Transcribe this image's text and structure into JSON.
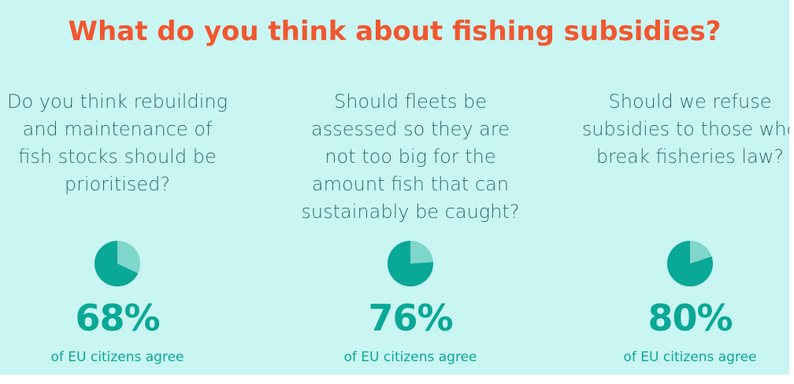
{
  "title": "What do you think about fishing subsidies?",
  "colors": {
    "background": "#c9f5f2",
    "title": "#f1572f",
    "question_text": "#2e6e6e",
    "accent": "#0aa896",
    "pie_agree": "#0aa896",
    "pie_rest": "#7fd6cb"
  },
  "chart_data": {
    "type": "pie",
    "title": "What do you think about fishing subsidies?",
    "unit": "%",
    "charts": [
      {
        "question": "Do you think rebuilding and maintenance of fish stocks should be prioritised?",
        "value": 68,
        "percent_label": "68%",
        "caption": "of EU citizens agree"
      },
      {
        "question": "Should fleets be assessed so they are not too big for the amount fish that can sustainably be caught?",
        "value": 76,
        "percent_label": "76%",
        "caption": "of EU citizens agree"
      },
      {
        "question": "Should we refuse subsidies to those who break fisheries law?",
        "value": 80,
        "percent_label": "80%",
        "caption": "of EU citizens agree"
      }
    ]
  }
}
